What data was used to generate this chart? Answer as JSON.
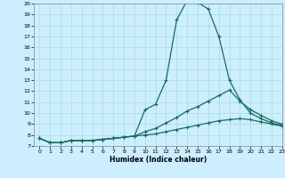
{
  "xlabel": "Humidex (Indice chaleur)",
  "bg_color": "#cceeff",
  "line_color": "#1a6b5a",
  "grid_color": "#aadddd",
  "ylim": [
    7,
    20
  ],
  "xlim": [
    -0.5,
    23
  ],
  "yticks": [
    7,
    8,
    9,
    10,
    11,
    12,
    13,
    14,
    15,
    16,
    17,
    18,
    19,
    20
  ],
  "xticks": [
    0,
    1,
    2,
    3,
    4,
    5,
    6,
    7,
    8,
    9,
    10,
    11,
    12,
    13,
    14,
    15,
    16,
    17,
    18,
    19,
    20,
    21,
    22,
    23
  ],
  "line1_x": [
    0,
    1,
    2,
    3,
    4,
    5,
    6,
    7,
    8,
    9,
    10,
    11,
    12,
    13,
    14,
    15,
    16,
    17,
    18,
    19,
    20,
    21,
    22,
    23
  ],
  "line1_y": [
    7.7,
    7.3,
    7.3,
    7.5,
    7.5,
    7.5,
    7.6,
    7.7,
    7.8,
    7.9,
    10.3,
    10.8,
    13.0,
    18.5,
    20.3,
    20.1,
    19.5,
    17.0,
    13.0,
    11.2,
    10.0,
    9.5,
    9.1,
    8.9
  ],
  "line2_x": [
    0,
    1,
    2,
    3,
    4,
    5,
    6,
    7,
    8,
    9,
    10,
    11,
    12,
    13,
    14,
    15,
    16,
    17,
    18,
    19,
    20,
    21,
    22,
    23
  ],
  "line2_y": [
    7.7,
    7.3,
    7.3,
    7.5,
    7.5,
    7.5,
    7.6,
    7.7,
    7.8,
    7.9,
    8.3,
    8.6,
    9.1,
    9.6,
    10.2,
    10.6,
    11.1,
    11.6,
    12.1,
    11.1,
    10.3,
    9.8,
    9.3,
    9.0
  ],
  "line3_x": [
    0,
    1,
    2,
    3,
    4,
    5,
    6,
    7,
    8,
    9,
    10,
    11,
    12,
    13,
    14,
    15,
    16,
    17,
    18,
    19,
    20,
    21,
    22,
    23
  ],
  "line3_y": [
    7.7,
    7.3,
    7.3,
    7.5,
    7.5,
    7.5,
    7.6,
    7.7,
    7.8,
    7.9,
    8.0,
    8.1,
    8.3,
    8.5,
    8.7,
    8.9,
    9.1,
    9.3,
    9.4,
    9.5,
    9.4,
    9.2,
    9.0,
    8.8
  ]
}
